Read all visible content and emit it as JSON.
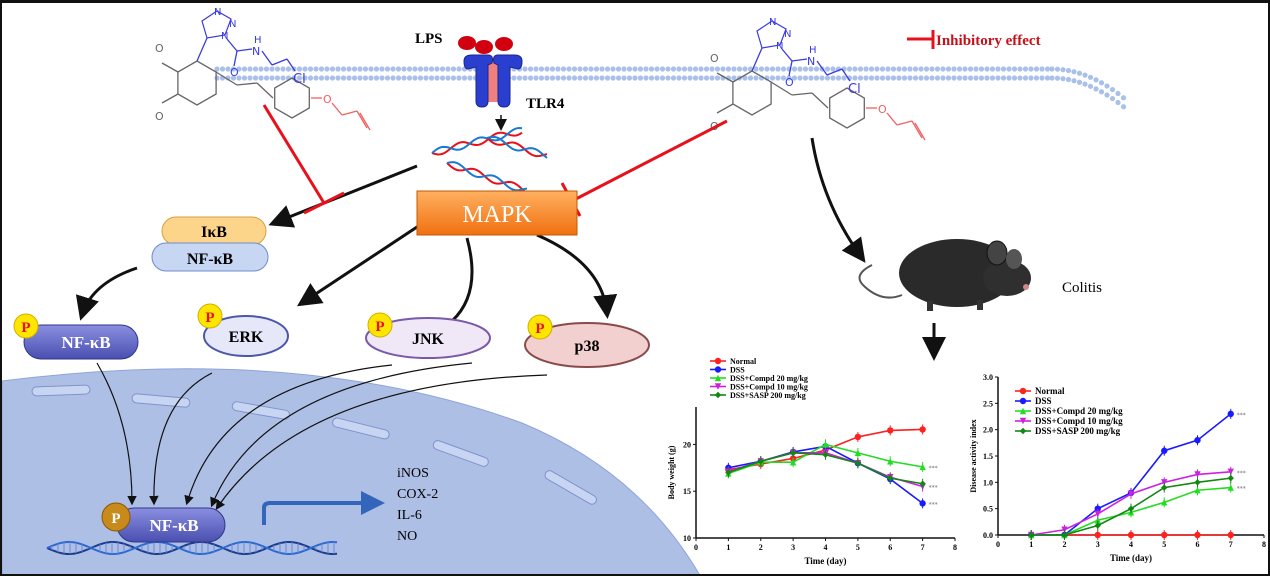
{
  "legend_inhibitory": "Inhibitory effect",
  "lps": "LPS",
  "tlr4": "TLR4",
  "mapk": "MAPK",
  "ikb": "IκB",
  "nfkb": "NF-κB",
  "p_nfkb": "NF-κB",
  "erk": "ERK",
  "jnk": "JNK",
  "p38": "p38",
  "phospho": "P",
  "nuclear_nfkb": "NF-κB",
  "colitis": "Colitis",
  "outputs": [
    "iNOS",
    "COX-2",
    "IL-6",
    "NO"
  ],
  "molecule_atoms": {
    "n1": "N",
    "n2": "N",
    "n3": "N",
    "nh": "N",
    "h": "H",
    "o_carbonyl": "O",
    "cl": "Cl",
    "o_ether": "O",
    "o_methoxy1": "O",
    "o_methoxy2": "O"
  },
  "colors": {
    "inhibit": "#e8101a",
    "mapk": "#f58220",
    "nucleus": "#aebfe6",
    "nfkb_dark": "#5a5fc0",
    "membrane": "#a9c0ea",
    "phospho": "#ffe600",
    "phospho_text": "#e8101a"
  },
  "chart_data": [
    {
      "type": "line",
      "xlabel": "Time (day)",
      "ylabel": "Body weight (g)",
      "xlim": [
        0,
        8
      ],
      "ylim": [
        10,
        24
      ],
      "xticks": [
        0,
        1,
        2,
        3,
        4,
        5,
        6,
        7,
        8
      ],
      "yticks": [
        10,
        15,
        20
      ],
      "legend": "top-left",
      "x": [
        1,
        2,
        3,
        4,
        5,
        6,
        7
      ],
      "significance": [
        "***",
        "***",
        "***"
      ],
      "series": [
        {
          "name": "Normal",
          "color": "#ff2020",
          "marker": "circle",
          "values": [
            17.3,
            17.9,
            18.5,
            19.4,
            20.8,
            21.5,
            21.6
          ]
        },
        {
          "name": "DSS",
          "color": "#1a1aff",
          "marker": "circle",
          "values": [
            17.5,
            18.2,
            19.2,
            19.8,
            18.0,
            16.3,
            13.7
          ]
        },
        {
          "name": "DSS+Compd 20 mg/kg",
          "color": "#22dd22",
          "marker": "triangle",
          "values": [
            16.9,
            18.1,
            18.1,
            20.0,
            19.1,
            18.2,
            17.6
          ]
        },
        {
          "name": "DSS+Compd 10 mg/kg",
          "color": "#cc22dd",
          "marker": "triangle-down",
          "values": [
            17.1,
            18.2,
            19.1,
            19.1,
            18.0,
            16.5,
            15.5
          ]
        },
        {
          "name": "DSS+SASP 200 mg/kg",
          "color": "#118811",
          "marker": "diamond",
          "values": [
            17.0,
            18.2,
            19.1,
            18.9,
            18.0,
            16.4,
            15.8
          ]
        }
      ]
    },
    {
      "type": "line",
      "xlabel": "Time (day)",
      "ylabel": "Disease activity index",
      "xlim": [
        0,
        8
      ],
      "ylim": [
        0,
        3
      ],
      "xticks": [
        0,
        1,
        2,
        3,
        4,
        5,
        6,
        7,
        8
      ],
      "yticks": [
        "0.0",
        "0.5",
        "1.0",
        "1.5",
        "2.0",
        "2.5",
        "3.0"
      ],
      "legend": "top-left",
      "x": [
        1,
        2,
        3,
        4,
        5,
        6,
        7
      ],
      "significance": [
        "***",
        "***",
        "***"
      ],
      "series": [
        {
          "name": "Normal",
          "color": "#ff2020",
          "marker": "circle",
          "values": [
            0,
            0,
            0,
            0,
            0,
            0,
            0
          ]
        },
        {
          "name": "DSS",
          "color": "#1a1aff",
          "marker": "circle",
          "values": [
            0,
            0,
            0.5,
            0.8,
            1.6,
            1.8,
            2.3
          ]
        },
        {
          "name": "DSS+Compd 20 mg/kg",
          "color": "#22dd22",
          "marker": "triangle",
          "values": [
            0,
            0,
            0.28,
            0.43,
            0.62,
            0.85,
            0.9
          ]
        },
        {
          "name": "DSS+Compd 10 mg/kg",
          "color": "#cc22dd",
          "marker": "triangle-down",
          "values": [
            0,
            0.1,
            0.4,
            0.78,
            1.0,
            1.15,
            1.2
          ]
        },
        {
          "name": "DSS+SASP 200 mg/kg",
          "color": "#118811",
          "marker": "diamond",
          "values": [
            0,
            0,
            0.18,
            0.5,
            0.9,
            1.0,
            1.08
          ]
        }
      ]
    }
  ]
}
